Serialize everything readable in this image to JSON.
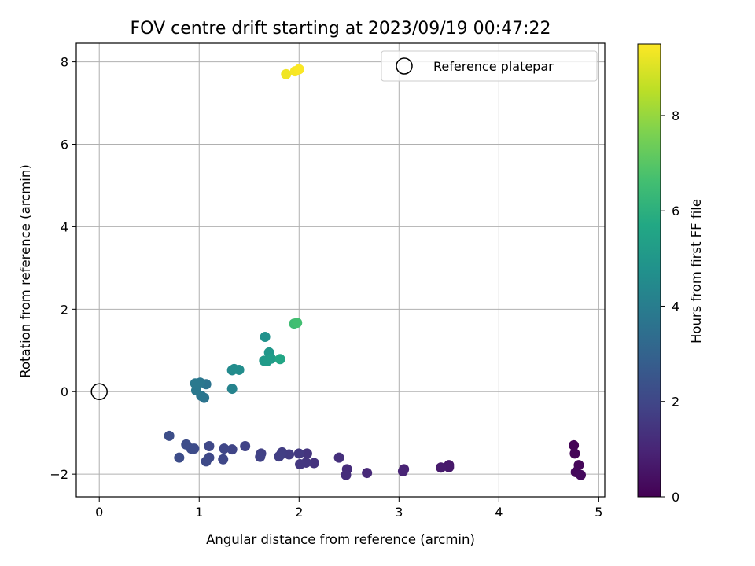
{
  "chart_data": {
    "type": "scatter",
    "title": "FOV centre drift starting at 2023/09/19 00:47:22",
    "xlabel": "Angular distance from reference (arcmin)",
    "ylabel": "Rotation from reference (arcmin)",
    "xlim": [
      -0.23,
      5.06
    ],
    "ylim": [
      -2.55,
      8.45
    ],
    "xticks": [
      0,
      1,
      2,
      3,
      4,
      5
    ],
    "yticks": [
      -2,
      0,
      2,
      4,
      6,
      8
    ],
    "ytick_labels": [
      "−2",
      "0",
      "2",
      "4",
      "6",
      "8"
    ],
    "grid": true,
    "legend": {
      "position": "top-right",
      "entries": [
        "Reference platepar"
      ]
    },
    "reference_point": {
      "x": 0,
      "y": 0
    },
    "colorbar": {
      "label": "Hours from first FF file",
      "colormap": "viridis",
      "range": [
        0,
        9.5
      ],
      "ticks": [
        0,
        2,
        4,
        6,
        8
      ]
    },
    "points": [
      {
        "x": 4.75,
        "y": -1.3,
        "h": 0.05
      },
      {
        "x": 4.76,
        "y": -1.5,
        "h": 0.1
      },
      {
        "x": 4.8,
        "y": -1.78,
        "h": 0.15
      },
      {
        "x": 4.77,
        "y": -1.95,
        "h": 0.2
      },
      {
        "x": 4.82,
        "y": -2.02,
        "h": 0.25
      },
      {
        "x": 3.5,
        "y": -1.78,
        "h": 0.6
      },
      {
        "x": 3.5,
        "y": -1.83,
        "h": 0.65
      },
      {
        "x": 3.42,
        "y": -1.84,
        "h": 0.7
      },
      {
        "x": 3.05,
        "y": -1.88,
        "h": 0.9
      },
      {
        "x": 3.04,
        "y": -1.93,
        "h": 0.95
      },
      {
        "x": 2.68,
        "y": -1.97,
        "h": 1.1
      },
      {
        "x": 2.48,
        "y": -1.88,
        "h": 1.2
      },
      {
        "x": 2.47,
        "y": -2.02,
        "h": 1.25
      },
      {
        "x": 2.4,
        "y": -1.6,
        "h": 1.3
      },
      {
        "x": 2.15,
        "y": -1.73,
        "h": 1.4
      },
      {
        "x": 2.08,
        "y": -1.5,
        "h": 1.45
      },
      {
        "x": 2.07,
        "y": -1.72,
        "h": 1.5
      },
      {
        "x": 2.01,
        "y": -1.76,
        "h": 1.55
      },
      {
        "x": 2.0,
        "y": -1.5,
        "h": 1.6
      },
      {
        "x": 1.9,
        "y": -1.52,
        "h": 1.65
      },
      {
        "x": 1.83,
        "y": -1.47,
        "h": 1.7
      },
      {
        "x": 1.82,
        "y": -1.52,
        "h": 1.72
      },
      {
        "x": 1.8,
        "y": -1.57,
        "h": 1.75
      },
      {
        "x": 1.62,
        "y": -1.5,
        "h": 1.8
      },
      {
        "x": 1.61,
        "y": -1.58,
        "h": 1.85
      },
      {
        "x": 1.46,
        "y": -1.32,
        "h": 1.9
      },
      {
        "x": 1.33,
        "y": -1.4,
        "h": 1.95
      },
      {
        "x": 1.25,
        "y": -1.38,
        "h": 2.0
      },
      {
        "x": 1.24,
        "y": -1.64,
        "h": 2.02
      },
      {
        "x": 1.1,
        "y": -1.32,
        "h": 2.05
      },
      {
        "x": 1.1,
        "y": -1.6,
        "h": 2.08
      },
      {
        "x": 1.07,
        "y": -1.69,
        "h": 2.1
      },
      {
        "x": 0.95,
        "y": -1.38,
        "h": 2.15
      },
      {
        "x": 0.92,
        "y": -1.38,
        "h": 2.18
      },
      {
        "x": 0.87,
        "y": -1.28,
        "h": 2.2
      },
      {
        "x": 0.8,
        "y": -1.6,
        "h": 2.22
      },
      {
        "x": 0.7,
        "y": -1.07,
        "h": 2.25
      },
      {
        "x": 1.07,
        "y": 0.18,
        "h": 3.6
      },
      {
        "x": 1.05,
        "y": -0.15,
        "h": 3.65
      },
      {
        "x": 1.02,
        "y": -0.1,
        "h": 3.7
      },
      {
        "x": 1.01,
        "y": 0.22,
        "h": 3.75
      },
      {
        "x": 0.97,
        "y": 0.03,
        "h": 3.8
      },
      {
        "x": 0.96,
        "y": 0.2,
        "h": 3.85
      },
      {
        "x": 1.33,
        "y": 0.07,
        "h": 4.2
      },
      {
        "x": 1.33,
        "y": 0.52,
        "h": 4.5
      },
      {
        "x": 1.35,
        "y": 0.55,
        "h": 4.55
      },
      {
        "x": 1.4,
        "y": 0.53,
        "h": 4.6
      },
      {
        "x": 1.66,
        "y": 1.33,
        "h": 4.8
      },
      {
        "x": 1.7,
        "y": 0.95,
        "h": 5.0
      },
      {
        "x": 1.65,
        "y": 0.75,
        "h": 5.1
      },
      {
        "x": 1.68,
        "y": 0.74,
        "h": 5.15
      },
      {
        "x": 1.72,
        "y": 0.8,
        "h": 5.2
      },
      {
        "x": 1.81,
        "y": 0.79,
        "h": 5.6
      },
      {
        "x": 1.95,
        "y": 1.65,
        "h": 6.5
      },
      {
        "x": 1.98,
        "y": 1.67,
        "h": 6.6
      },
      {
        "x": 1.87,
        "y": 7.7,
        "h": 9.3
      },
      {
        "x": 1.96,
        "y": 7.77,
        "h": 9.4
      },
      {
        "x": 2.0,
        "y": 7.82,
        "h": 9.45
      }
    ]
  }
}
